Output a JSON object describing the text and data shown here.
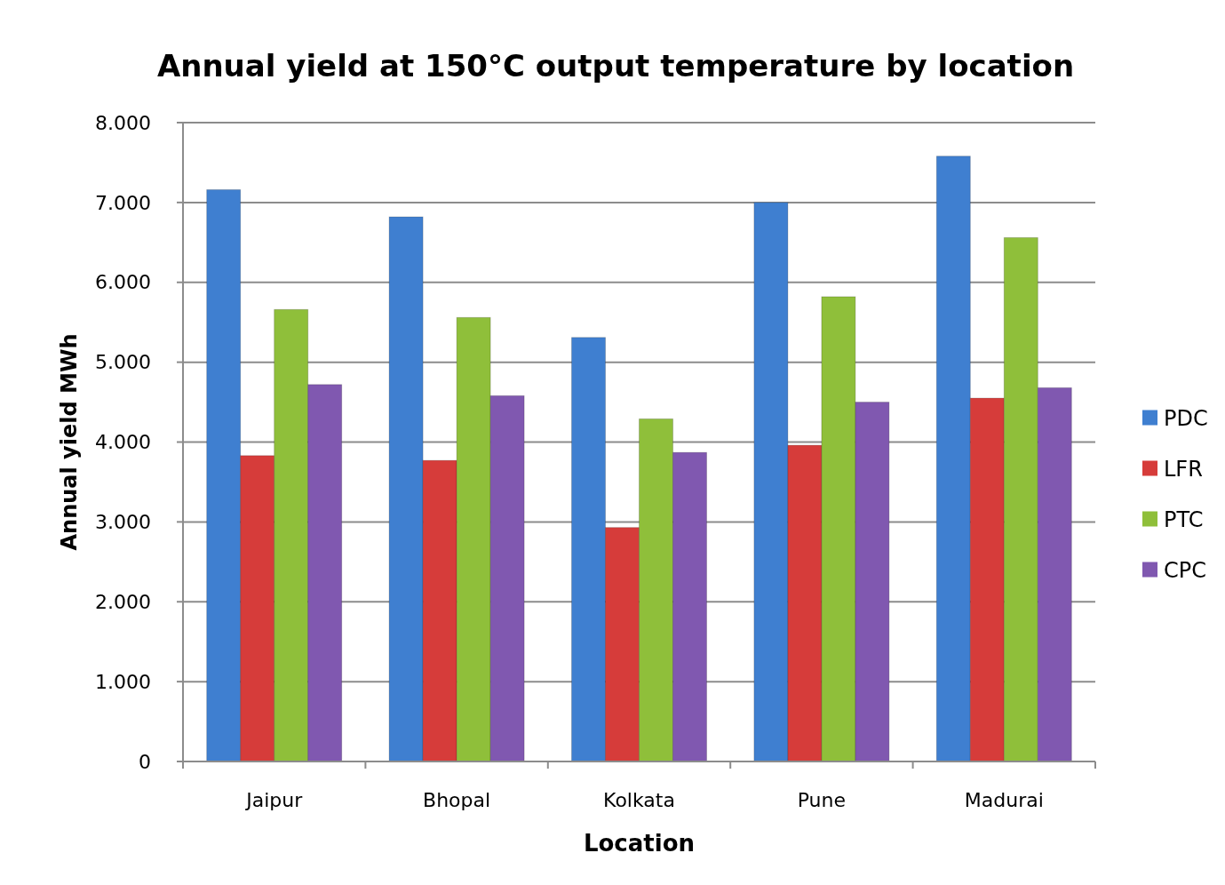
{
  "chart_data": {
    "type": "bar",
    "title": "Annual yield at 150°C output temperature by location",
    "xlabel": "Location",
    "ylabel": "Annual yield MWh",
    "categories": [
      "Jaipur",
      "Bhopal",
      "Kolkata",
      "Pune",
      "Madurai"
    ],
    "series": [
      {
        "name": "PDC",
        "color": "#3f7fd0",
        "values": [
          7160,
          6820,
          5310,
          7000,
          7580
        ]
      },
      {
        "name": "LFR",
        "color": "#d63c3a",
        "values": [
          3830,
          3770,
          2930,
          3960,
          4550
        ]
      },
      {
        "name": "PTC",
        "color": "#8fbf3a",
        "values": [
          5660,
          5560,
          4290,
          5820,
          6560
        ]
      },
      {
        "name": "CPC",
        "color": "#8058b0",
        "values": [
          4720,
          4580,
          3870,
          4500,
          4680
        ]
      }
    ],
    "ylim": [
      0,
      8000
    ],
    "yticks": [
      0,
      {
        "value": 1000,
        "label": "1.000"
      },
      {
        "value": 2000,
        "label": "2.000"
      },
      {
        "value": 3000,
        "label": "3.000"
      },
      {
        "value": 4000,
        "label": "4.000"
      },
      {
        "value": 5000,
        "label": "5.000"
      },
      {
        "value": 6000,
        "label": "6.000"
      },
      {
        "value": 7000,
        "label": "7.000"
      },
      {
        "value": 8000,
        "label": "8.000"
      }
    ],
    "grid": "y",
    "legend": "right"
  }
}
